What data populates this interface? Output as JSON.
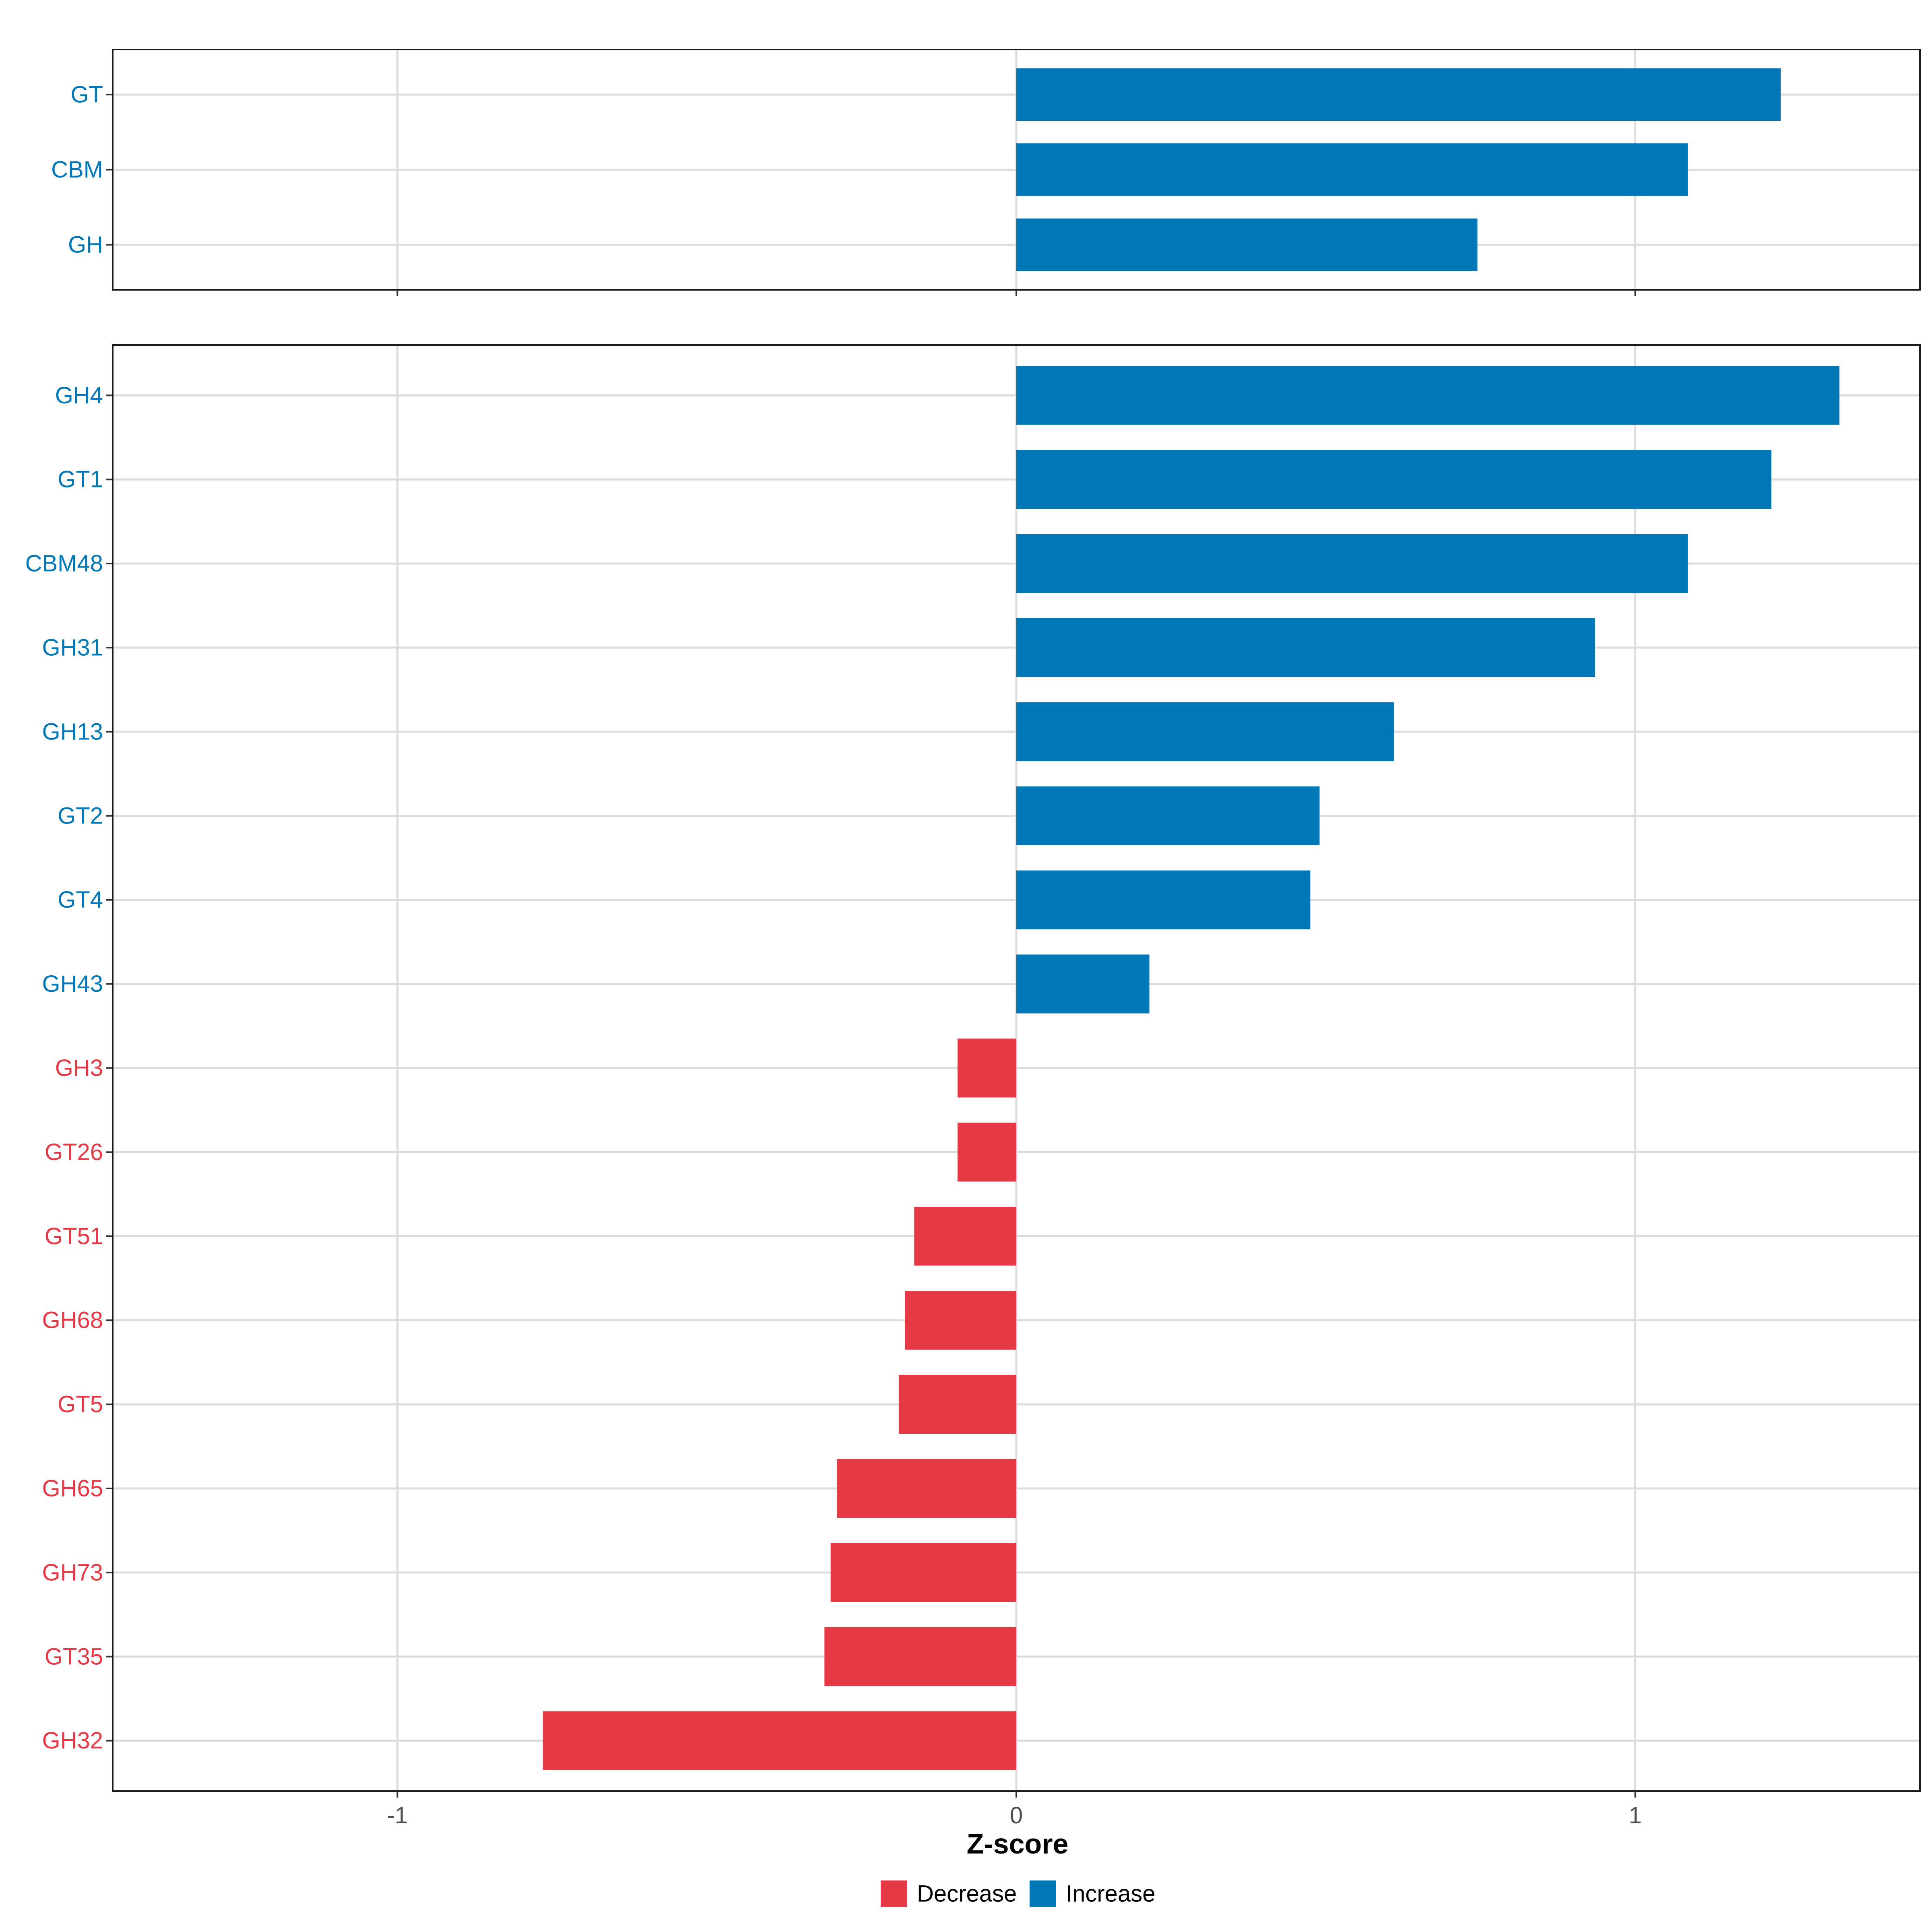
{
  "chart_data": {
    "type": "bar",
    "orientation": "horizontal",
    "xlabel": "Z-score",
    "xlim": [
      -1.46,
      1.46
    ],
    "x_ticks": [
      -1,
      0,
      1
    ],
    "x_tick_labels": [
      "-1",
      "0",
      "1"
    ],
    "grid": true,
    "legend_position": "bottom",
    "legend": [
      {
        "label": "Decrease",
        "color": "#E63946"
      },
      {
        "label": "Increase",
        "color": "#0077B6"
      }
    ],
    "colors": {
      "Decrease": "#E63946",
      "Increase": "#0077B6"
    },
    "panels": [
      {
        "name": "top",
        "categories": [
          "GT",
          "CBM",
          "GH"
        ],
        "values": [
          1.235,
          1.085,
          0.745
        ],
        "groups": [
          "Increase",
          "Increase",
          "Increase"
        ]
      },
      {
        "name": "bottom",
        "categories": [
          "GH4",
          "GT1",
          "CBM48",
          "GH31",
          "GH13",
          "GT2",
          "GT4",
          "GH43",
          "GH3",
          "GT26",
          "GT51",
          "GH68",
          "GT5",
          "GH65",
          "GH73",
          "GT35",
          "GH32"
        ],
        "values": [
          1.33,
          1.22,
          1.085,
          0.935,
          0.61,
          0.49,
          0.475,
          0.215,
          -0.095,
          -0.095,
          -0.165,
          -0.18,
          -0.19,
          -0.29,
          -0.3,
          -0.31,
          -0.765
        ],
        "groups": [
          "Increase",
          "Increase",
          "Increase",
          "Increase",
          "Increase",
          "Increase",
          "Increase",
          "Increase",
          "Decrease",
          "Decrease",
          "Decrease",
          "Decrease",
          "Decrease",
          "Decrease",
          "Decrease",
          "Decrease",
          "Decrease"
        ]
      }
    ]
  }
}
